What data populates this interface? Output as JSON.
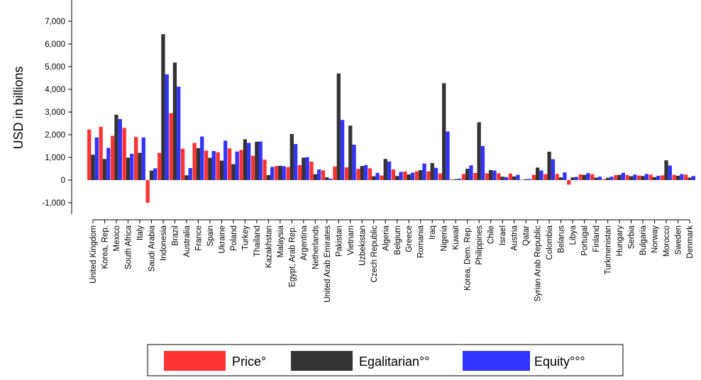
{
  "chart_data": {
    "type": "bar",
    "title": "",
    "xlabel": "",
    "ylabel": "USD in billions",
    "ylim": [
      -1000,
      7000
    ],
    "yticks": [
      -1000,
      0,
      1000,
      2000,
      3000,
      4000,
      5000,
      6000,
      7000
    ],
    "ytick_labels": [
      "-1,000",
      "0",
      "1,000",
      "2,000",
      "3,000",
      "4,000",
      "5,000",
      "6,000",
      "7,000"
    ],
    "grid": false,
    "legend_position": "bottom",
    "categories": [
      "United Kingdom",
      "Korea, Rep.",
      "Mexico",
      "South Africa",
      "Italy",
      "Saudi Arabia",
      "Indonesia",
      "Brazil",
      "Australia",
      "France",
      "Spain",
      "Ukraine",
      "Poland",
      "Turkey",
      "Thailand",
      "Kazakhstan",
      "Malaysia",
      "Egypt, Arab Rep.",
      "Argentina",
      "Netherlands",
      "United Arab Emirates",
      "Pakistan",
      "Vietnam",
      "Uzbekistan",
      "Czech Republic",
      "Algeria",
      "Belgium",
      "Greece",
      "Romania",
      "Iraq",
      "Nigeria",
      "Kuwait",
      "Korea, Dem. Rep.",
      "Philippines",
      "Chile",
      "Israel",
      "Austria",
      "Qatar",
      "Syrian Arab Republic",
      "Colombia",
      "Belarus",
      "Libya",
      "Portugal",
      "Finland",
      "Turkmenistan",
      "Hungary",
      "Serbia",
      "Bulgaria",
      "Norway",
      "Morocco",
      "Sweden",
      "Denmark"
    ],
    "series": [
      {
        "name": "Price°",
        "color": "#ff3333",
        "values": [
          2230,
          2350,
          1950,
          2300,
          1900,
          -1000,
          1200,
          2950,
          1380,
          1640,
          1300,
          1230,
          1400,
          1330,
          1070,
          900,
          620,
          570,
          660,
          810,
          430,
          600,
          560,
          490,
          520,
          200,
          470,
          380,
          390,
          380,
          290,
          30,
          270,
          310,
          300,
          300,
          290,
          20,
          230,
          260,
          270,
          -200,
          250,
          260,
          40,
          220,
          220,
          200,
          240,
          210,
          230,
          240
        ]
      },
      {
        "name": "Egalitarian°°",
        "color": "#333333",
        "values": [
          1120,
          930,
          2880,
          990,
          1200,
          420,
          6430,
          5180,
          210,
          1410,
          980,
          860,
          700,
          1800,
          1690,
          220,
          630,
          2030,
          990,
          260,
          120,
          4700,
          2400,
          620,
          170,
          930,
          180,
          250,
          440,
          750,
          4270,
          40,
          500,
          2550,
          440,
          150,
          160,
          40,
          550,
          1250,
          120,
          120,
          230,
          110,
          100,
          230,
          170,
          180,
          130,
          870,
          190,
          110
        ]
      },
      {
        "name": "Equity°°°",
        "color": "#3333ff",
        "values": [
          1880,
          1420,
          2690,
          1160,
          1880,
          520,
          4660,
          4120,
          530,
          1920,
          1280,
          1740,
          1260,
          1640,
          1700,
          580,
          610,
          1590,
          1010,
          470,
          60,
          2650,
          1560,
          660,
          320,
          820,
          360,
          330,
          730,
          540,
          2140,
          60,
          650,
          1500,
          420,
          130,
          230,
          50,
          420,
          920,
          340,
          140,
          310,
          150,
          150,
          320,
          240,
          270,
          190,
          640,
          260,
          180
        ]
      }
    ]
  },
  "legend": {
    "items": [
      {
        "label": "Price°",
        "color": "#ff3333"
      },
      {
        "label": "Egalitarian°°",
        "color": "#333333"
      },
      {
        "label": "Equity°°°",
        "color": "#3333ff"
      }
    ]
  }
}
